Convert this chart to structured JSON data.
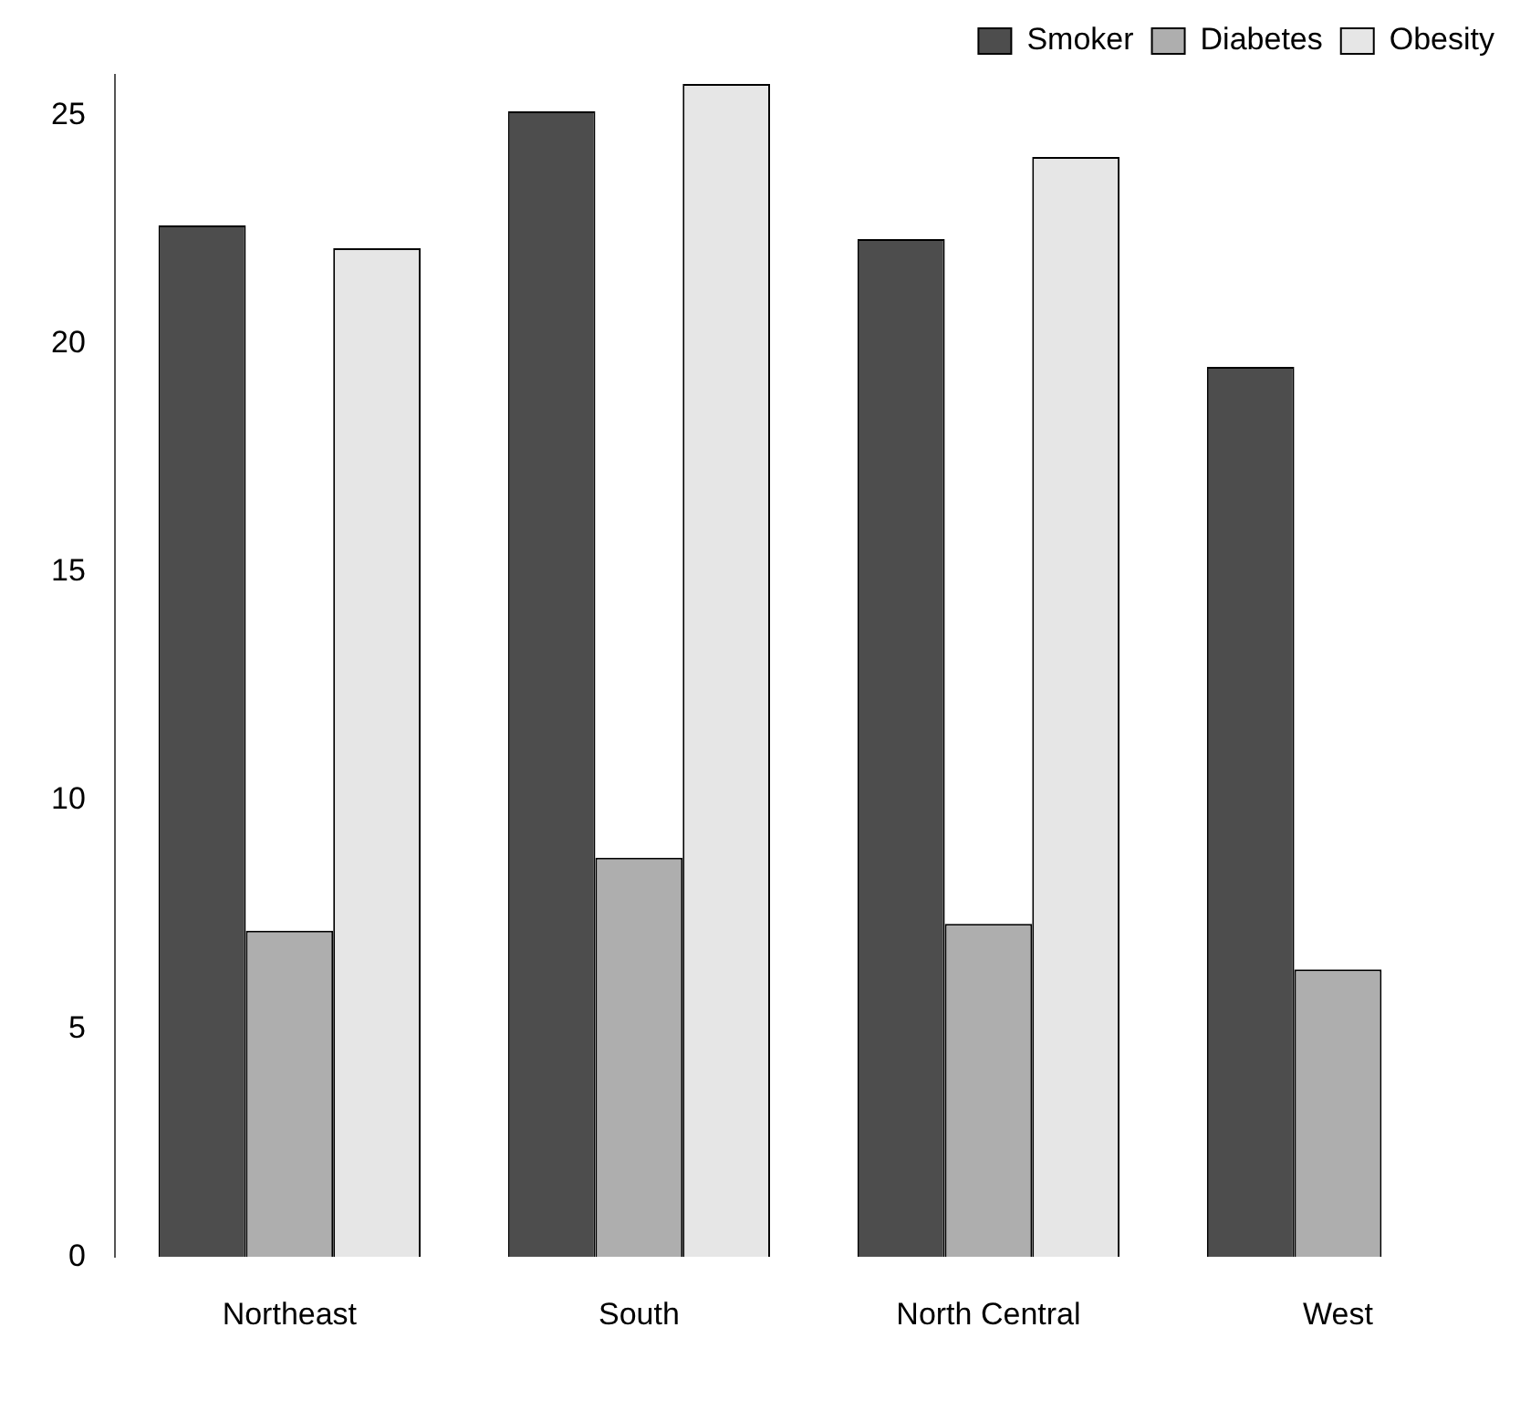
{
  "chart_data": {
    "type": "bar",
    "categories": [
      "Northeast",
      "South",
      "North Central",
      "West"
    ],
    "series": [
      {
        "name": "Smoker",
        "color": "#4d4d4d",
        "values": [
          22.6,
          25.1,
          22.3,
          19.5
        ]
      },
      {
        "name": "Diabetes",
        "color": "#aeaeae",
        "values": [
          7.15,
          8.75,
          7.3,
          6.3
        ]
      },
      {
        "name": "Obesity",
        "color": "#e6e6e6",
        "values": [
          22.1,
          25.7,
          24.1,
          null
        ]
      }
    ],
    "ylim": [
      0,
      25.9
    ],
    "yticks": [
      0,
      5,
      10,
      15,
      20,
      25
    ],
    "grid": false,
    "legend": "top right"
  }
}
